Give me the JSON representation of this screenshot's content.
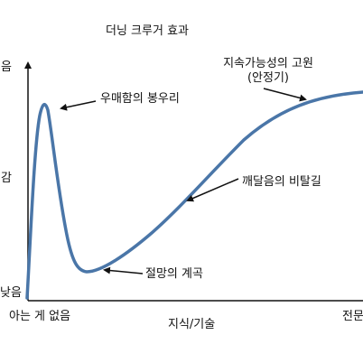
{
  "title": "더닝 크루거 효과",
  "x_axis": {
    "label": "지식/기술",
    "start_label": "아는 게 없음",
    "end_label": "전문"
  },
  "y_axis": {
    "top_label": "음",
    "middle_label": "감",
    "bottom_label": "낮음"
  },
  "annotations": {
    "peak": "우매함의 봉우리",
    "valley": "절망의 계곡",
    "slope": "깨달음의 비탈길",
    "plateau_line1": "지속가능성의 고원",
    "plateau_line2": "(안정기)"
  },
  "colors": {
    "curve": "#4a76a8",
    "axis": "#111111",
    "text": "#111111"
  }
}
